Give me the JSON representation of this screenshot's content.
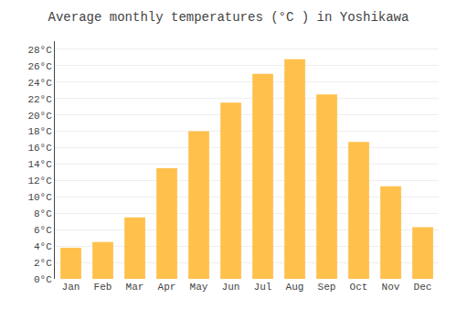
{
  "chart_data": {
    "type": "bar",
    "title": "Average monthly temperatures (°C ) in Yoshikawa",
    "categories": [
      "Jan",
      "Feb",
      "Mar",
      "Apr",
      "May",
      "Jun",
      "Jul",
      "Aug",
      "Sep",
      "Oct",
      "Nov",
      "Dec"
    ],
    "values": [
      3.8,
      4.5,
      7.5,
      13.5,
      18.0,
      21.5,
      25.0,
      26.8,
      22.5,
      16.7,
      11.3,
      6.3
    ],
    "color": "#FFC04C",
    "ylim": [
      0,
      29
    ],
    "yticks": [
      {
        "value": 0,
        "label": "0°C"
      },
      {
        "value": 2,
        "label": "2°C"
      },
      {
        "value": 4,
        "label": "4°C"
      },
      {
        "value": 6,
        "label": "6°C"
      },
      {
        "value": 8,
        "label": "8°C"
      },
      {
        "value": 10,
        "label": "10°C"
      },
      {
        "value": 12,
        "label": "12°C"
      },
      {
        "value": 14,
        "label": "14°C"
      },
      {
        "value": 16,
        "label": "16°C"
      },
      {
        "value": 18,
        "label": "18°C"
      },
      {
        "value": 20,
        "label": "20°C"
      },
      {
        "value": 22,
        "label": "22°C"
      },
      {
        "value": 24,
        "label": "24°C"
      },
      {
        "value": 26,
        "label": "26°C"
      },
      {
        "value": 28,
        "label": "28°C"
      }
    ],
    "grid": true
  }
}
